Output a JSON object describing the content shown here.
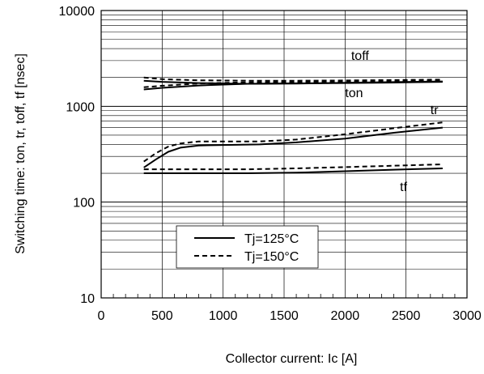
{
  "chart_data": {
    "type": "line",
    "xlabel": "Collector current: Ic [A]",
    "ylabel": "Switching time: ton, tr, toff, tf [nsec]",
    "xlim": [
      0,
      3000
    ],
    "ylim": [
      10,
      10000
    ],
    "yscale": "log",
    "grid": true,
    "x_ticks": [
      0,
      500,
      1000,
      1500,
      2000,
      2500,
      3000
    ],
    "y_ticks": [
      10,
      100,
      1000,
      10000
    ],
    "x_tick_labels": [
      "0",
      "500",
      "1000",
      "1500",
      "2000",
      "2500",
      "3000"
    ],
    "y_tick_labels": [
      "10",
      "100",
      "1000",
      "10000"
    ],
    "legend": {
      "placement": "bottom-center",
      "entries": [
        {
          "label": "Tj=125°C",
          "style": "solid"
        },
        {
          "label": "Tj=150°C",
          "style": "dashed"
        }
      ]
    },
    "curve_labels": [
      {
        "text": "toff",
        "x": 2050,
        "y": 3050
      },
      {
        "text": "ton",
        "x": 2000,
        "y": 1250
      },
      {
        "text": "tr",
        "x": 2700,
        "y": 830
      },
      {
        "text": "tf",
        "x": 2450,
        "y": 130
      }
    ],
    "series": [
      {
        "name": "toff",
        "style": "solid",
        "x": [
          350,
          500,
          800,
          1200,
          1600,
          2000,
          2400,
          2800
        ],
        "y": [
          1850,
          1800,
          1750,
          1720,
          1730,
          1760,
          1790,
          1820
        ]
      },
      {
        "name": "toff",
        "style": "dashed",
        "x": [
          350,
          500,
          800,
          1200,
          1600,
          2000,
          2400,
          2800
        ],
        "y": [
          2000,
          1920,
          1870,
          1850,
          1850,
          1860,
          1880,
          1900
        ]
      },
      {
        "name": "ton",
        "style": "solid",
        "x": [
          350,
          500,
          800,
          1200,
          1600,
          2000,
          2400,
          2800
        ],
        "y": [
          1500,
          1560,
          1650,
          1720,
          1740,
          1750,
          1770,
          1800
        ]
      },
      {
        "name": "ton",
        "style": "dashed",
        "x": [
          350,
          500,
          800,
          1200,
          1600,
          2000,
          2400,
          2800
        ],
        "y": [
          1580,
          1640,
          1730,
          1780,
          1790,
          1800,
          1820,
          1850
        ]
      },
      {
        "name": "tr",
        "style": "solid",
        "x": [
          350,
          450,
          550,
          650,
          800,
          1000,
          1300,
          1600,
          2000,
          2400,
          2800
        ],
        "y": [
          230,
          280,
          335,
          370,
          390,
          395,
          400,
          420,
          460,
          530,
          600
        ]
      },
      {
        "name": "tr",
        "style": "dashed",
        "x": [
          350,
          450,
          550,
          650,
          800,
          1000,
          1300,
          1600,
          2000,
          2400,
          2800
        ],
        "y": [
          265,
          325,
          380,
          410,
          430,
          430,
          430,
          450,
          510,
          590,
          680
        ]
      },
      {
        "name": "tf",
        "style": "solid",
        "x": [
          350,
          700,
          1200,
          1600,
          2000,
          2400,
          2800
        ],
        "y": [
          200,
          200,
          200,
          203,
          210,
          218,
          225
        ]
      },
      {
        "name": "tf",
        "style": "dashed",
        "x": [
          350,
          700,
          1200,
          1600,
          2000,
          2400,
          2800
        ],
        "y": [
          220,
          220,
          220,
          225,
          232,
          240,
          248
        ]
      }
    ]
  }
}
